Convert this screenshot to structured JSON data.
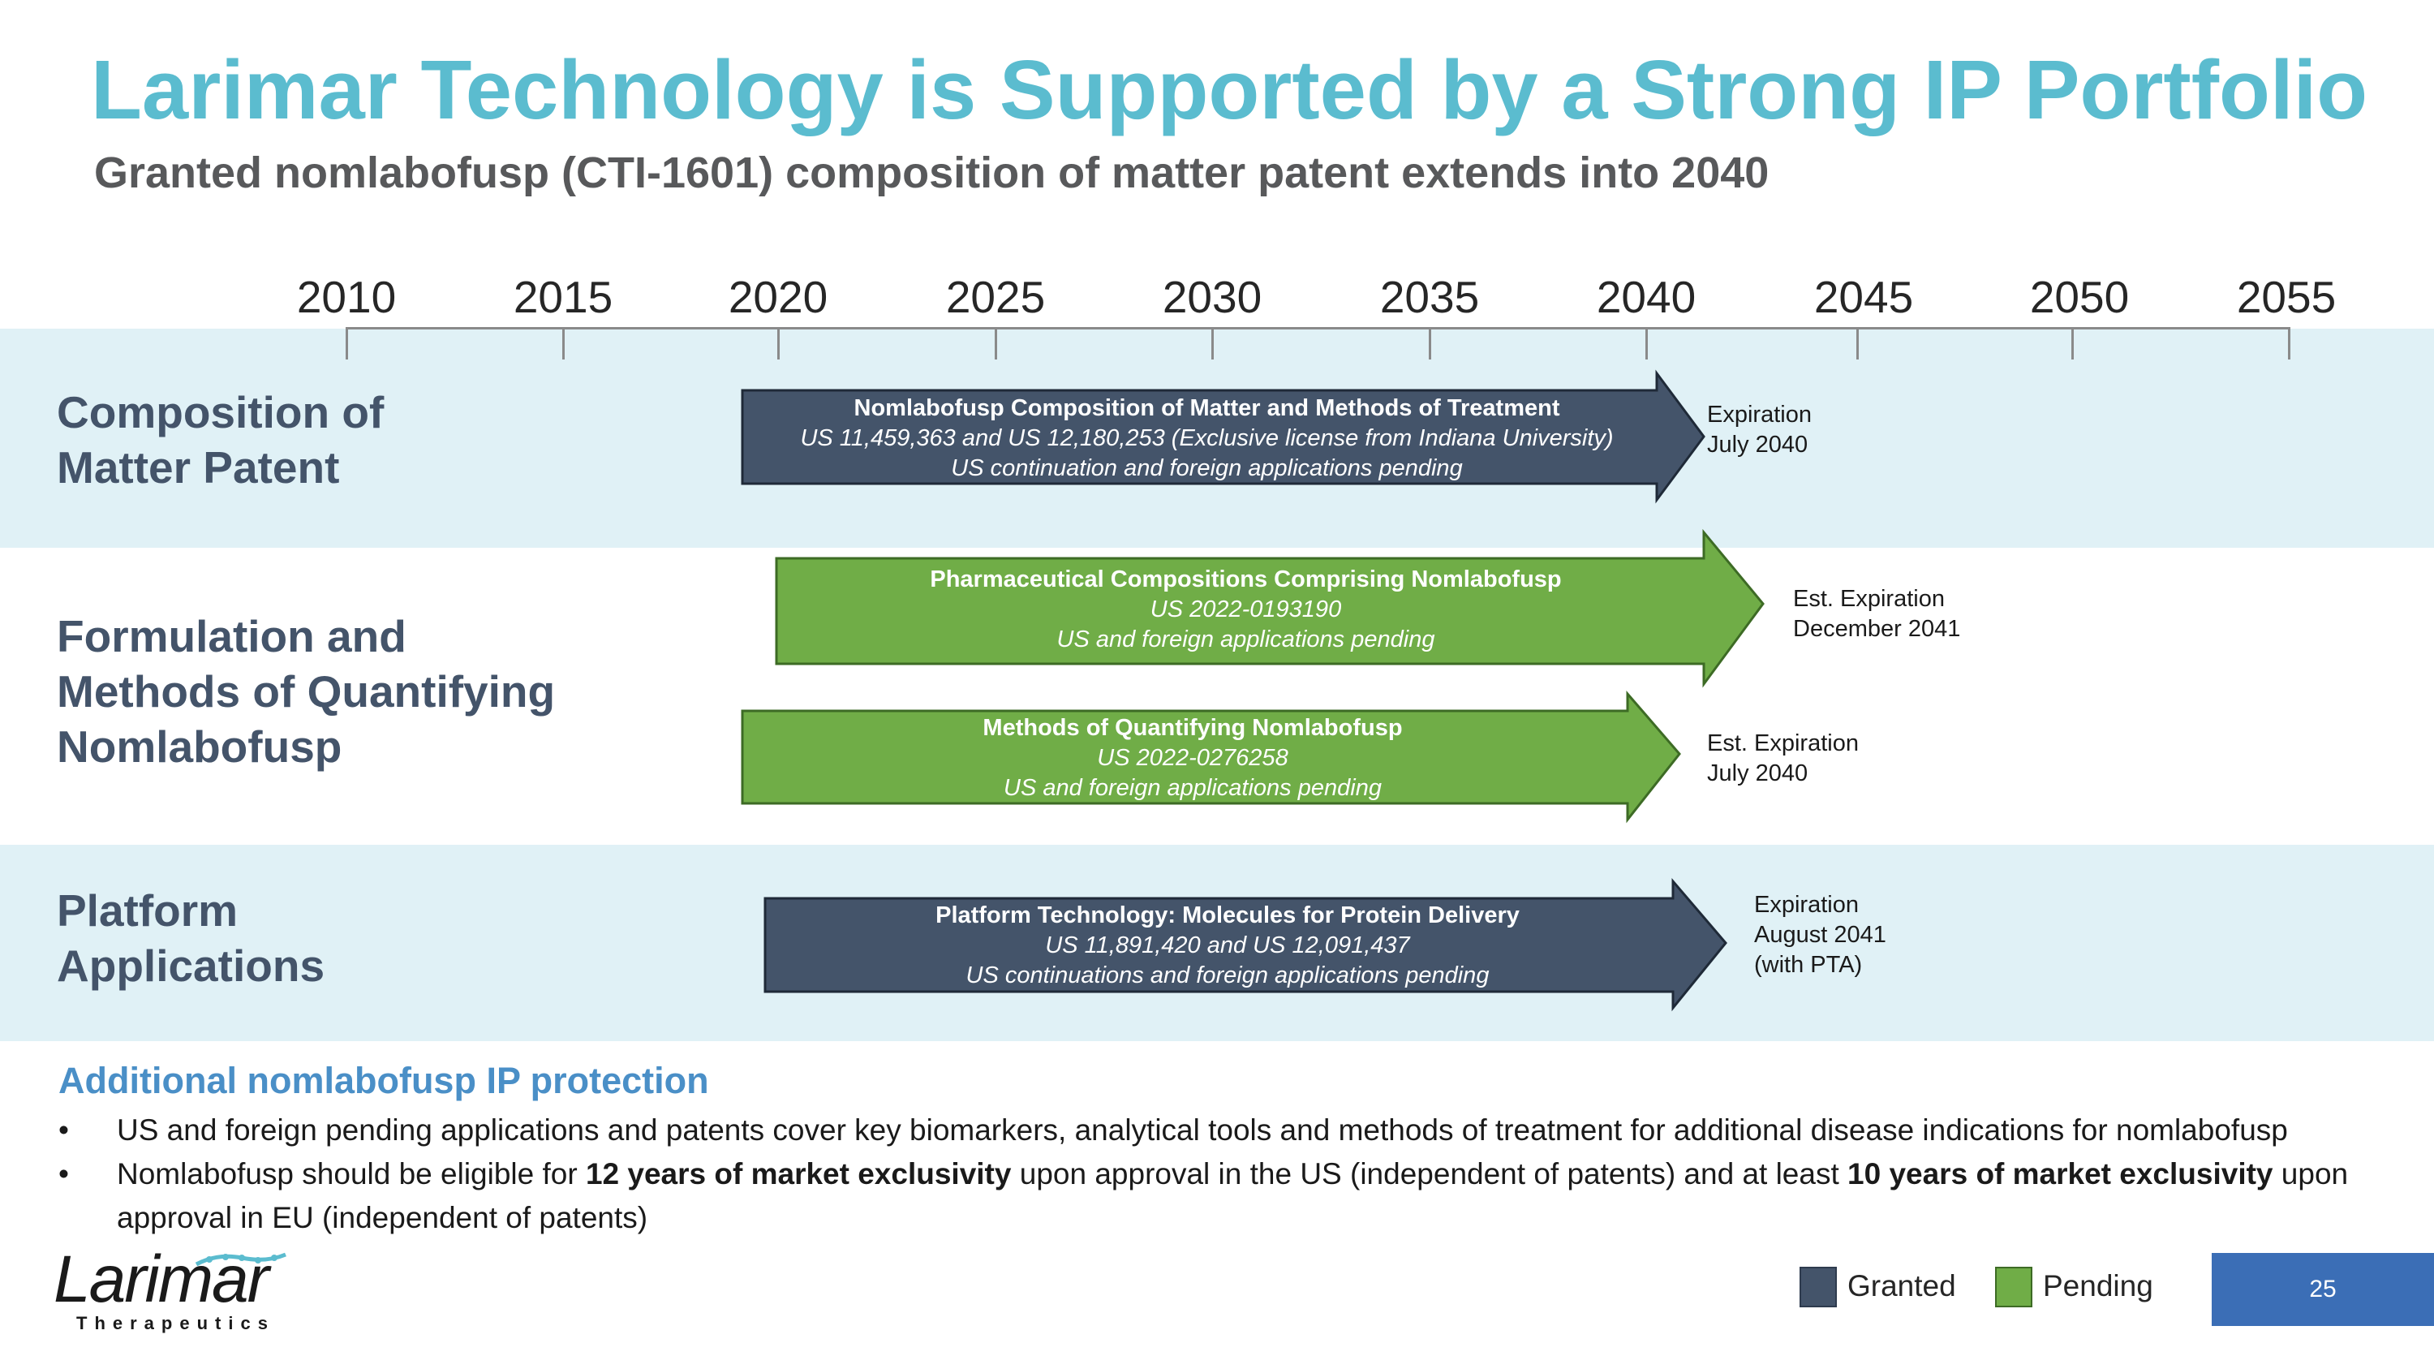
{
  "title": "Larimar Technology is Supported by a Strong IP Portfolio",
  "subtitle": "Granted nomlabofusp (CTI-1601) composition of matter patent extends into 2040",
  "timeline": {
    "years": [
      "2010",
      "2015",
      "2020",
      "2025",
      "2030",
      "2035",
      "2040",
      "2045",
      "2050",
      "2055"
    ]
  },
  "categories": {
    "composition": [
      "Composition of",
      "Matter Patent"
    ],
    "formulation": [
      "Formulation and",
      "Methods of Quantifying",
      "Nomlabofusp"
    ],
    "platform": [
      "Platform",
      "Applications"
    ]
  },
  "arrows": [
    {
      "status": "Granted",
      "title": "Nomlabofusp Composition of Matter and Methods of Treatment",
      "line1": "US 11,459,363 and US 12,180,253 (Exclusive license from Indiana University)",
      "line2": "US continuation and foreign applications pending",
      "expiration": [
        "Expiration",
        "July 2040"
      ]
    },
    {
      "status": "Pending",
      "title": "Pharmaceutical Compositions Comprising Nomlabofusp",
      "line1": "US 2022-0193190",
      "line2": "US and foreign applications pending",
      "expiration": [
        "Est. Expiration",
        "December 2041"
      ]
    },
    {
      "status": "Pending",
      "title": "Methods of Quantifying Nomlabofusp",
      "line1": "US 2022-0276258",
      "line2": "US and foreign applications pending",
      "expiration": [
        "Est. Expiration",
        "July 2040"
      ]
    },
    {
      "status": "Granted",
      "title": "Platform Technology: Molecules for Protein Delivery",
      "line1": "US 11,891,420 and US 12,091,437",
      "line2": "US continuations and foreign applications pending",
      "expiration": [
        "Expiration",
        "August 2041",
        "(with PTA)"
      ]
    }
  ],
  "additional": {
    "heading": "Additional nomlabofusp IP protection",
    "bullet_symbol": "•",
    "bullet1": "US and foreign pending applications and patents cover key biomarkers, analytical tools and methods of treatment for additional disease indications for nomlabofusp",
    "bullet2": {
      "part1": "Nomlabofusp should be eligible for ",
      "bold1": "12 years of market exclusivity",
      "part2": " upon approval in the US (independent of patents) and at least ",
      "bold2": "10 years of market exclusivity",
      "part3": " upon approval in EU (independent of patents)"
    }
  },
  "legend": {
    "granted": "Granted",
    "pending": "Pending"
  },
  "colors": {
    "granted": "#44546a",
    "pending": "#70ad47",
    "title": "#5bbccf",
    "band": "#e0f1f6"
  },
  "logo": {
    "name": "Larimar",
    "tagline": "Therapeutics"
  },
  "page_number": "25"
}
